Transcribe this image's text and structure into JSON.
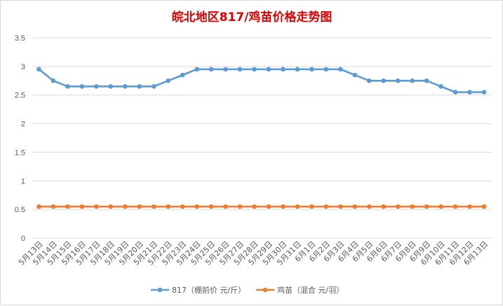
{
  "chart_data": {
    "type": "line",
    "title": "皖北地区817/鸡苗价格走势图",
    "xlabel": "",
    "ylabel": "",
    "ylim": [
      0,
      3.5
    ],
    "yticks": [
      "0",
      "0.5",
      "1",
      "1.5",
      "2",
      "2.5",
      "3",
      "3.5"
    ],
    "grid": true,
    "legend_position": "bottom",
    "categories": [
      "5月13日",
      "5月14日",
      "5月15日",
      "5月16日",
      "5月17日",
      "5月18日",
      "5月19日",
      "5月20日",
      "5月21日",
      "5月22日",
      "5月23日",
      "5月24日",
      "5月25日",
      "5月26日",
      "5月27日",
      "5月28日",
      "5月29日",
      "5月30日",
      "5月31日",
      "6月1日",
      "6月2日",
      "6月3日",
      "6月4日",
      "6月5日",
      "6月6日",
      "6月7日",
      "6月8日",
      "6月9日",
      "6月10日",
      "6月11日",
      "6月12日",
      "6月13日"
    ],
    "series": [
      {
        "name": "817（棚前价 元/斤）",
        "color": "#5b9bd5",
        "values": [
          2.95,
          2.75,
          2.65,
          2.65,
          2.65,
          2.65,
          2.65,
          2.65,
          2.65,
          2.75,
          2.85,
          2.95,
          2.95,
          2.95,
          2.95,
          2.95,
          2.95,
          2.95,
          2.95,
          2.95,
          2.95,
          2.95,
          2.85,
          2.75,
          2.75,
          2.75,
          2.75,
          2.75,
          2.65,
          2.55,
          2.55,
          2.55
        ]
      },
      {
        "name": "鸡苗（混合 元/羽）",
        "color": "#ed7d31",
        "values": [
          0.55,
          0.55,
          0.55,
          0.55,
          0.55,
          0.55,
          0.55,
          0.55,
          0.55,
          0.55,
          0.55,
          0.55,
          0.55,
          0.55,
          0.55,
          0.55,
          0.55,
          0.55,
          0.55,
          0.55,
          0.55,
          0.55,
          0.55,
          0.55,
          0.55,
          0.55,
          0.55,
          0.55,
          0.55,
          0.55,
          0.55,
          0.55
        ]
      }
    ]
  }
}
